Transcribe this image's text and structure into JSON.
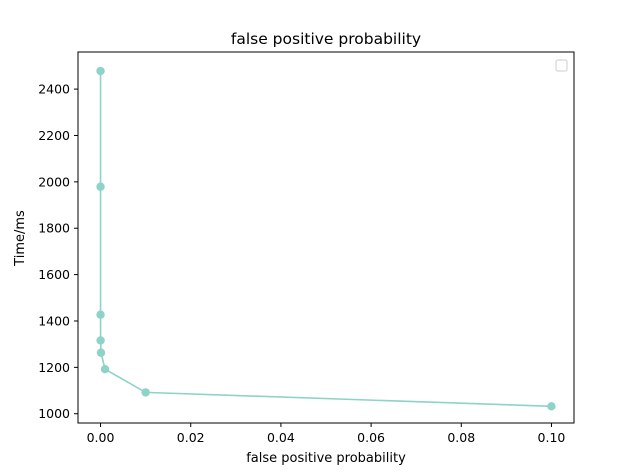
{
  "chart_data": {
    "type": "line",
    "title": "false positive probability",
    "xlabel": "false positive probability",
    "ylabel": "Time/ms",
    "xlim": [
      -0.005,
      0.105
    ],
    "ylim": [
      960,
      2560
    ],
    "xticks": [
      0.0,
      0.02,
      0.04,
      0.06,
      0.08,
      0.1
    ],
    "xtick_labels": [
      "0.00",
      "0.02",
      "0.04",
      "0.06",
      "0.08",
      "0.10"
    ],
    "yticks": [
      1000,
      1200,
      1400,
      1600,
      1800,
      2000,
      2200,
      2400
    ],
    "ytick_labels": [
      "1000",
      "1200",
      "1400",
      "1600",
      "1800",
      "2000",
      "2200",
      "2400"
    ],
    "grid": false,
    "legend": "top-right",
    "legend_entries": [],
    "series": [
      {
        "color": "#8dd3c7",
        "marker": "circle",
        "x": [
          0.1,
          0.01,
          0.001,
          0.0001,
          1e-05,
          1e-06,
          1e-07,
          1e-08
        ],
        "y": [
          1032,
          1092,
          1192,
          1263,
          1316,
          1427,
          1979,
          2478
        ]
      }
    ]
  }
}
